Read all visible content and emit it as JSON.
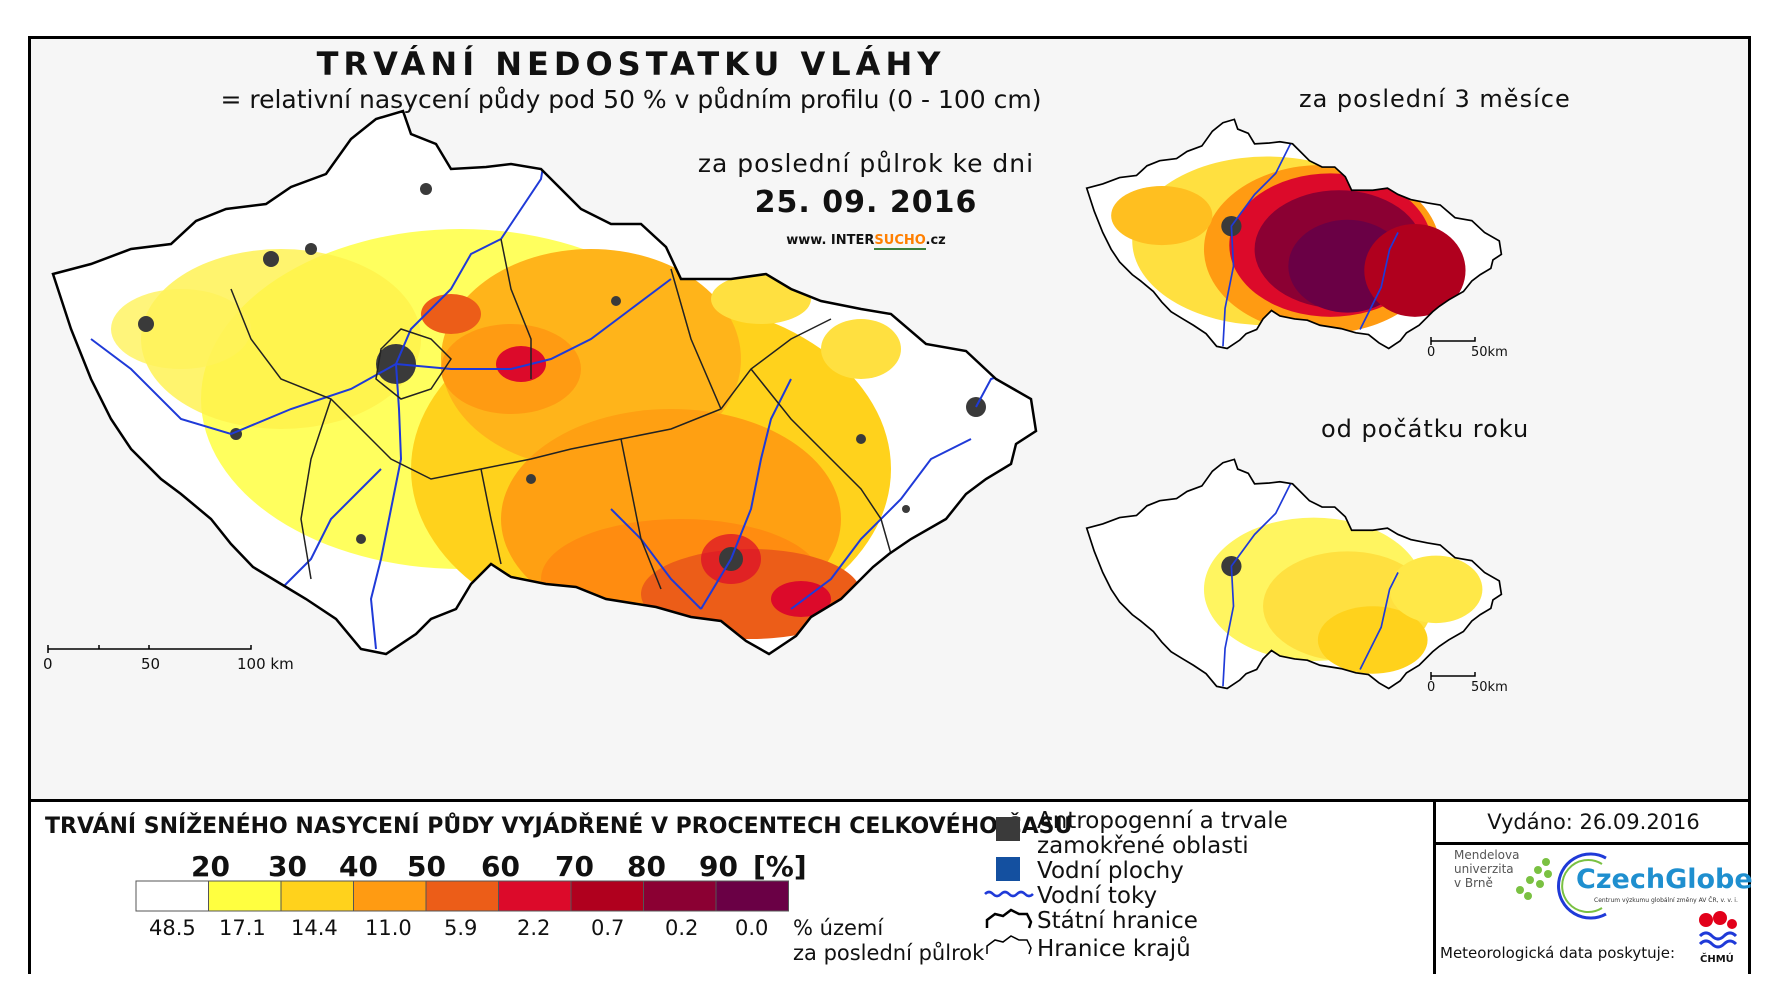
{
  "map": {
    "title": "TRVÁNÍ NEDOSTATKU VLÁHY",
    "subtitle": "= relativní nasycení půdy pod 50 % v půdním profilu (0 - 100 cm)",
    "period_label": "za poslední půlrok ke dni",
    "date": "25. 09. 2016",
    "website_prefix": "www. INTER",
    "website_highlight": "SUCHO",
    "website_suffix": ".cz",
    "scale": {
      "t0": "0",
      "t1": "50",
      "t2": "100 km"
    }
  },
  "insets": [
    {
      "title": "za poslední 3 měsíce",
      "scale_0": "0",
      "scale_1": "50km"
    },
    {
      "title": "od počátku roku",
      "scale_0": "0",
      "scale_1": "50km"
    }
  ],
  "legend": {
    "title": "TRVÁNÍ SNÍŽENÉHO NASYCENÍ PŮDY VYJÁDŘENÉ V PROCENTECH CELKOVÉHO ČASU",
    "thresholds": [
      "20",
      "30",
      "40",
      "50",
      "60",
      "70",
      "80",
      "90"
    ],
    "unit": "[%]",
    "colors": [
      "#ffffff",
      "#ffff40",
      "#ffd21c",
      "#ff9b12",
      "#ec5d18",
      "#dc0a2a",
      "#b0001e",
      "#8b0033",
      "#6a0045"
    ],
    "values": [
      "48.5",
      "17.1",
      "14.4",
      "11.0",
      "5.9",
      "2.2",
      "0.7",
      "0.2",
      "0.0"
    ],
    "values_unit_line1": "% území",
    "values_unit_line2": "za poslední půlrok"
  },
  "symbols": [
    {
      "icon": "anthropogenic-area",
      "label_line1": "Antropogenní a trvale",
      "label_line2": "zamokřené oblasti",
      "color": "#3a3a3a"
    },
    {
      "icon": "water-body",
      "label_line1": "Vodní plochy",
      "color": "#1450a0"
    },
    {
      "icon": "river",
      "label_line1": "Vodní toky",
      "color": "#1f3ad8"
    },
    {
      "icon": "state-border",
      "label_line1": "Státní hranice"
    },
    {
      "icon": "region-border",
      "label_line1": "Hranice krajů"
    }
  ],
  "publication": {
    "issued": "Vydáno: 26.09.2016",
    "mendel": "Mendelova\nuniverzita\nv Brně",
    "czechglobe": "CzechGlobe",
    "czechglobe_sub": "Centrum výzkumu globální změny AV ČR, v. v. i.",
    "meteo": "Meteorologická data poskytuje:",
    "chmu": "ČHMÚ"
  }
}
